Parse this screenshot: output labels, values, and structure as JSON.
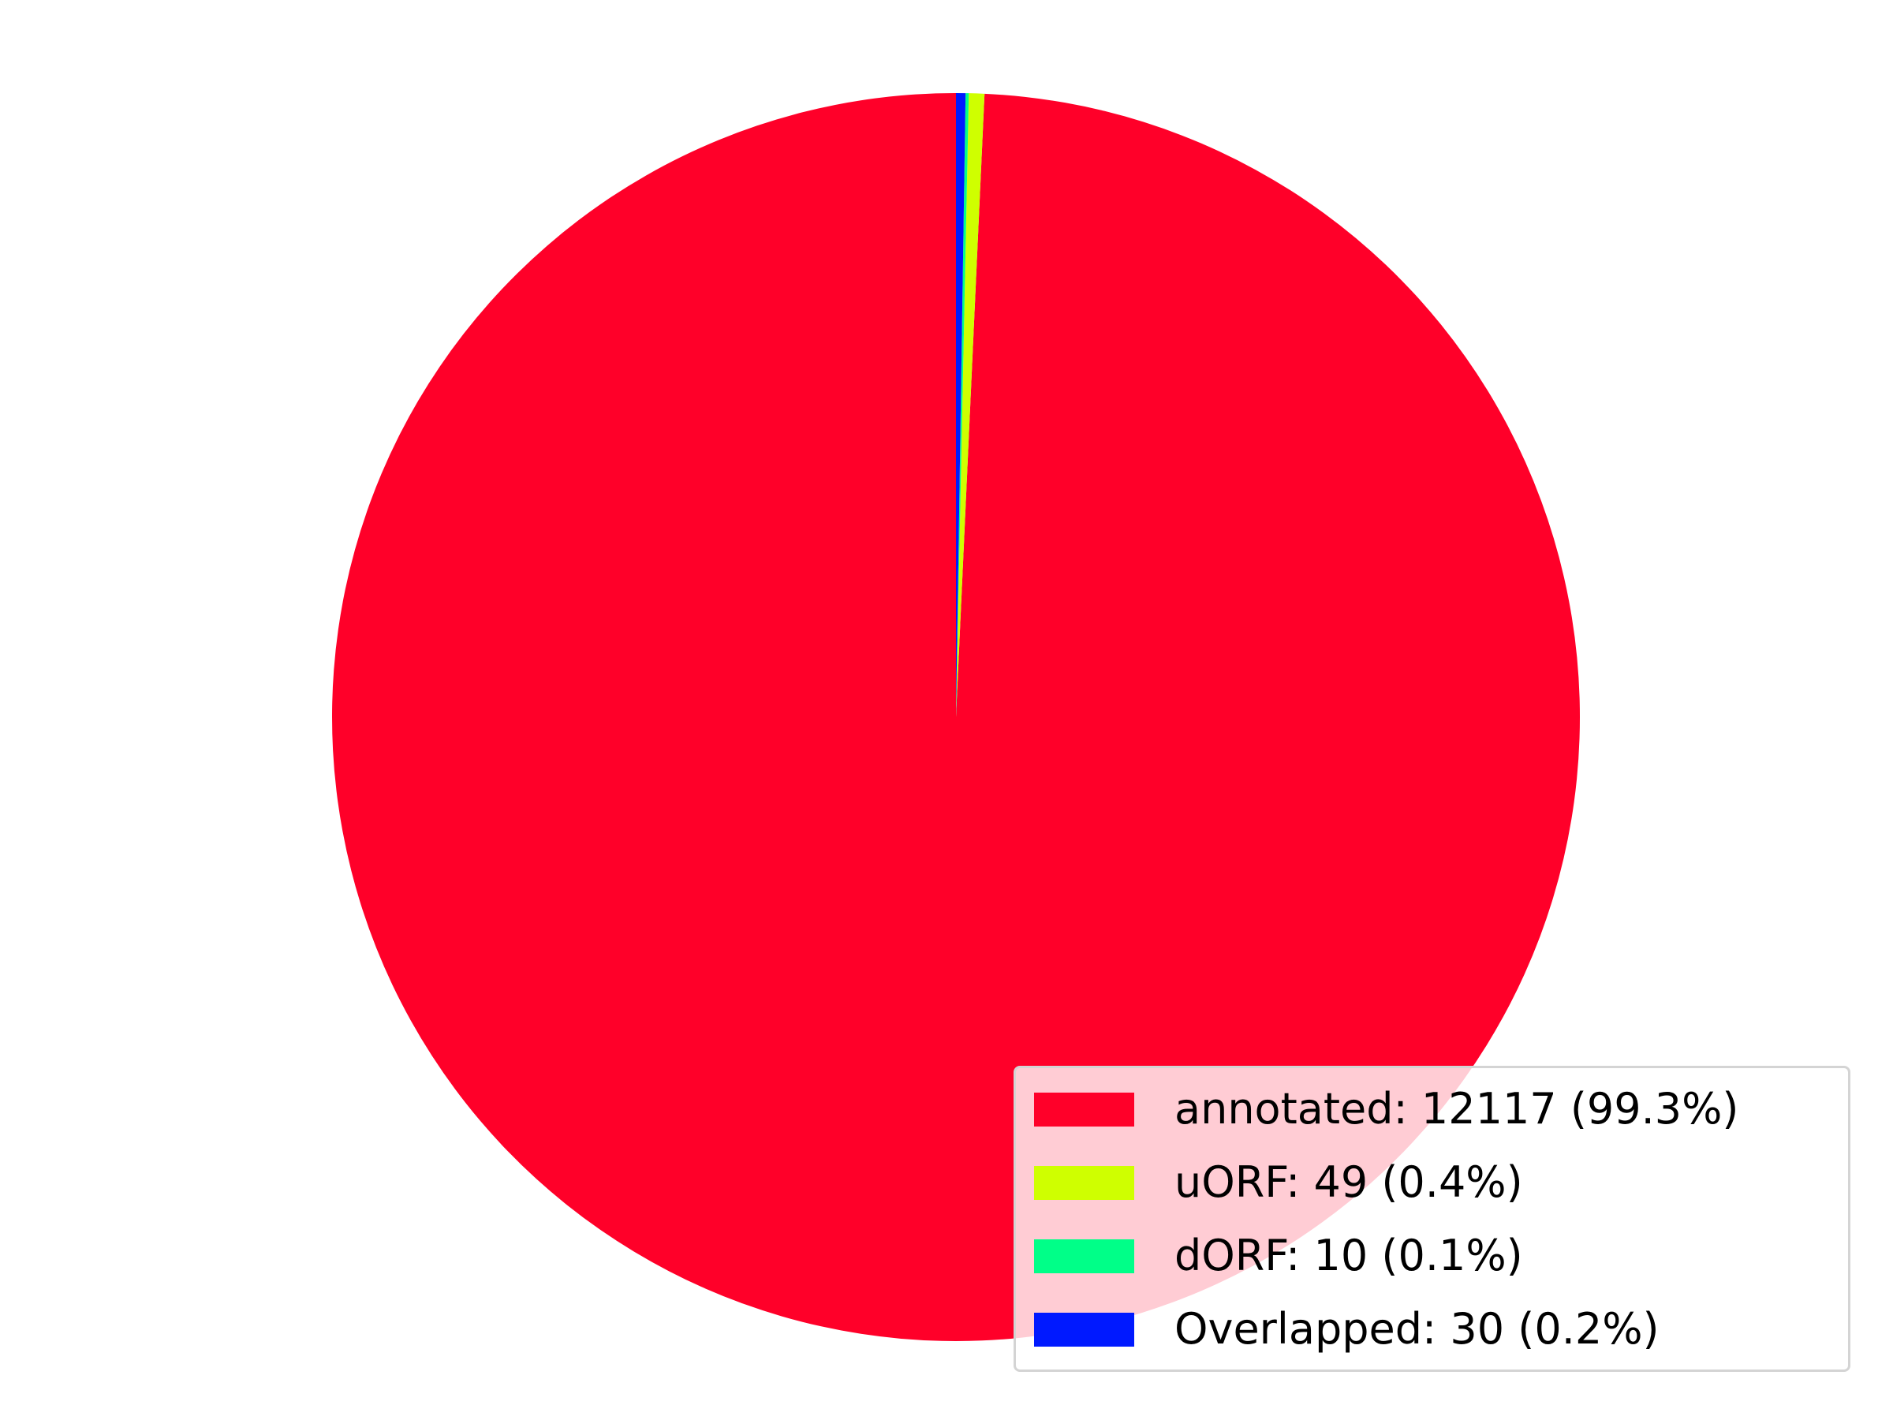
{
  "chart_data": {
    "type": "pie",
    "title": "",
    "start_angle_deg": 90,
    "direction": "counterclockwise",
    "legend_position": "bottom-right",
    "slices": [
      {
        "category": "annotated",
        "value": 12117,
        "percent": 99.3,
        "color": "#ff0029",
        "label": "annotated: 12117 (99.3%)"
      },
      {
        "category": "uORF",
        "value": 49,
        "percent": 0.4,
        "color": "#cfff00",
        "label": "uORF: 49 (0.4%)"
      },
      {
        "category": "dORF",
        "value": 10,
        "percent": 0.1,
        "color": "#00ff88",
        "label": "dORF: 10 (0.1%)"
      },
      {
        "category": "Overlapped",
        "value": 30,
        "percent": 0.2,
        "color": "#0019ff",
        "label": "Overlapped: 30 (0.2%)"
      }
    ]
  }
}
